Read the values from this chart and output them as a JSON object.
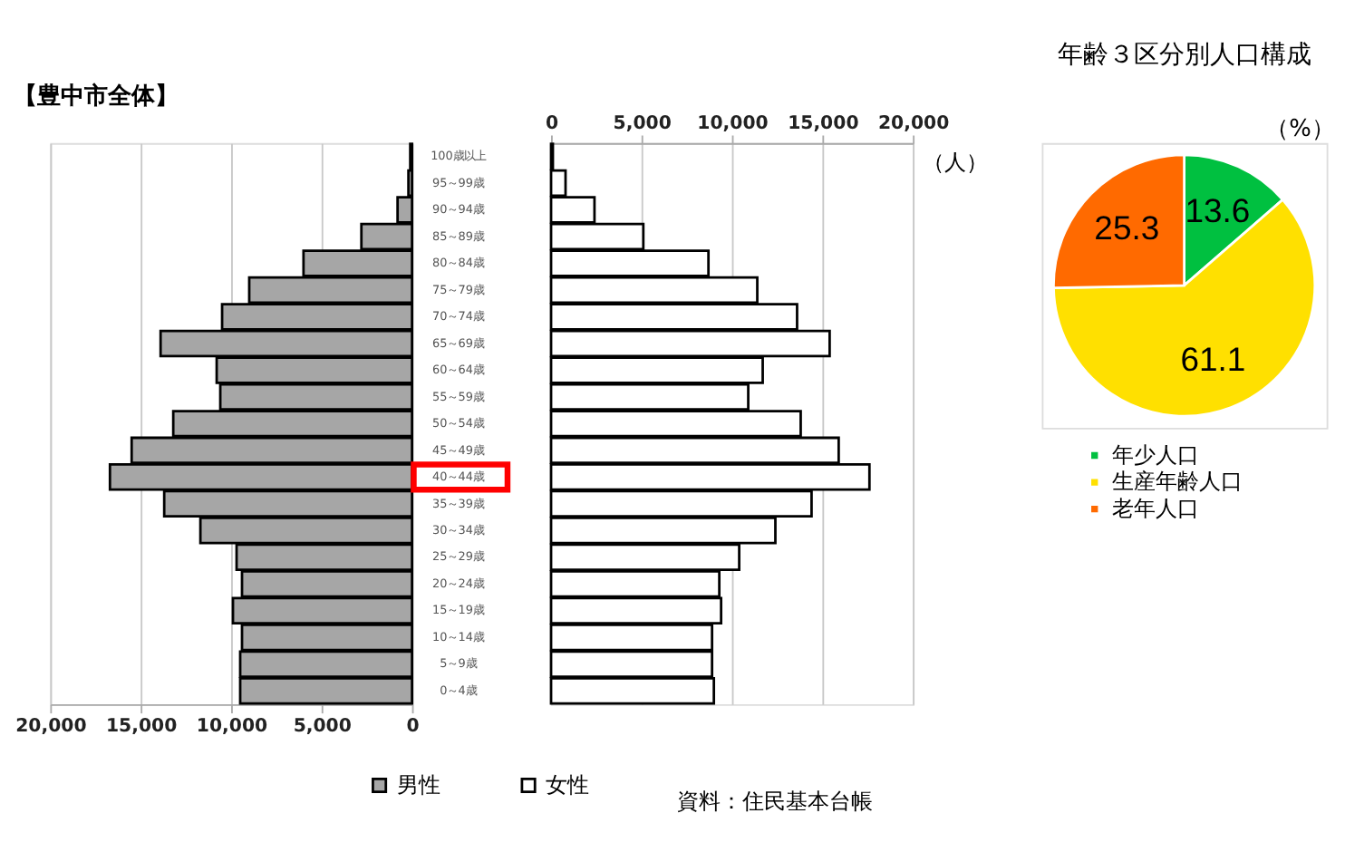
{
  "chart_data": [
    {
      "type": "bar",
      "orientation": "horizontal",
      "title": "【豊中市全体】",
      "categories": [
        "100歳以上",
        "95～99歳",
        "90～94歳",
        "85～89歳",
        "80～84歳",
        "75～79歳",
        "70～74歳",
        "65～69歳",
        "60～64歳",
        "55～59歳",
        "50～54歳",
        "45～49歳",
        "40～44歳",
        "35～39歳",
        "30～34歳",
        "25～29歳",
        "20～24歳",
        "15～19歳",
        "10～14歳",
        "5～9歳",
        "0～4歳"
      ],
      "series": [
        {
          "name": "男性",
          "color": "#a6a6a6",
          "values": [
            100,
            200,
            800,
            2800,
            6000,
            9000,
            10500,
            13900,
            10800,
            10600,
            13200,
            15500,
            16700,
            13700,
            11700,
            9700,
            9400,
            9900,
            9400,
            9500,
            9500
          ]
        }
      ],
      "xlim": [
        20000,
        0
      ],
      "xticks": [
        {
          "value": 20000,
          "label": "20,000"
        },
        {
          "value": 15000,
          "label": "15,000"
        },
        {
          "value": 10000,
          "label": "10,000"
        },
        {
          "value": 5000,
          "label": "5,000"
        },
        0
      ],
      "grid": "x",
      "legend": "bottom"
    },
    {
      "type": "bar",
      "orientation": "horizontal",
      "xlabel": "（人）",
      "categories": [
        null,
        null,
        null,
        null,
        null,
        null,
        null,
        null,
        null,
        null,
        null,
        null,
        null,
        null,
        null,
        null,
        null,
        null,
        null,
        null,
        null
      ],
      "series": [
        {
          "name": "女性",
          "color": "#ffffff",
          "values": [
            100,
            800,
            2400,
            5100,
            8700,
            11400,
            13600,
            15400,
            11700,
            10900,
            13800,
            15900,
            17600,
            14400,
            12400,
            10400,
            9300,
            9400,
            8900,
            8900,
            9000
          ]
        }
      ],
      "xlim": [
        0,
        20000
      ],
      "xticks": [
        0,
        {
          "value": 5000,
          "label": "5,000"
        },
        {
          "value": 10000,
          "label": "10,000"
        },
        {
          "value": 15000,
          "label": "15,000"
        },
        {
          "value": 20000,
          "label": "20,000"
        }
      ],
      "grid": "x",
      "legend": "bottom",
      "tick_labels": "x",
      "annotations": [
        "資料：住民基本台帳"
      ]
    },
    {
      "type": "pie",
      "title": "年齢３区分別人口構成",
      "categories": [
        "年少人口",
        "生産年齢人口",
        "老年人口"
      ],
      "values": [
        13.6,
        61.1,
        25.3
      ],
      "colors": [
        "#00c040",
        "#ffe000",
        "#ff6a00"
      ],
      "data_labels": true,
      "legend": "bottom left",
      "annotations": [
        "（%）"
      ]
    }
  ]
}
